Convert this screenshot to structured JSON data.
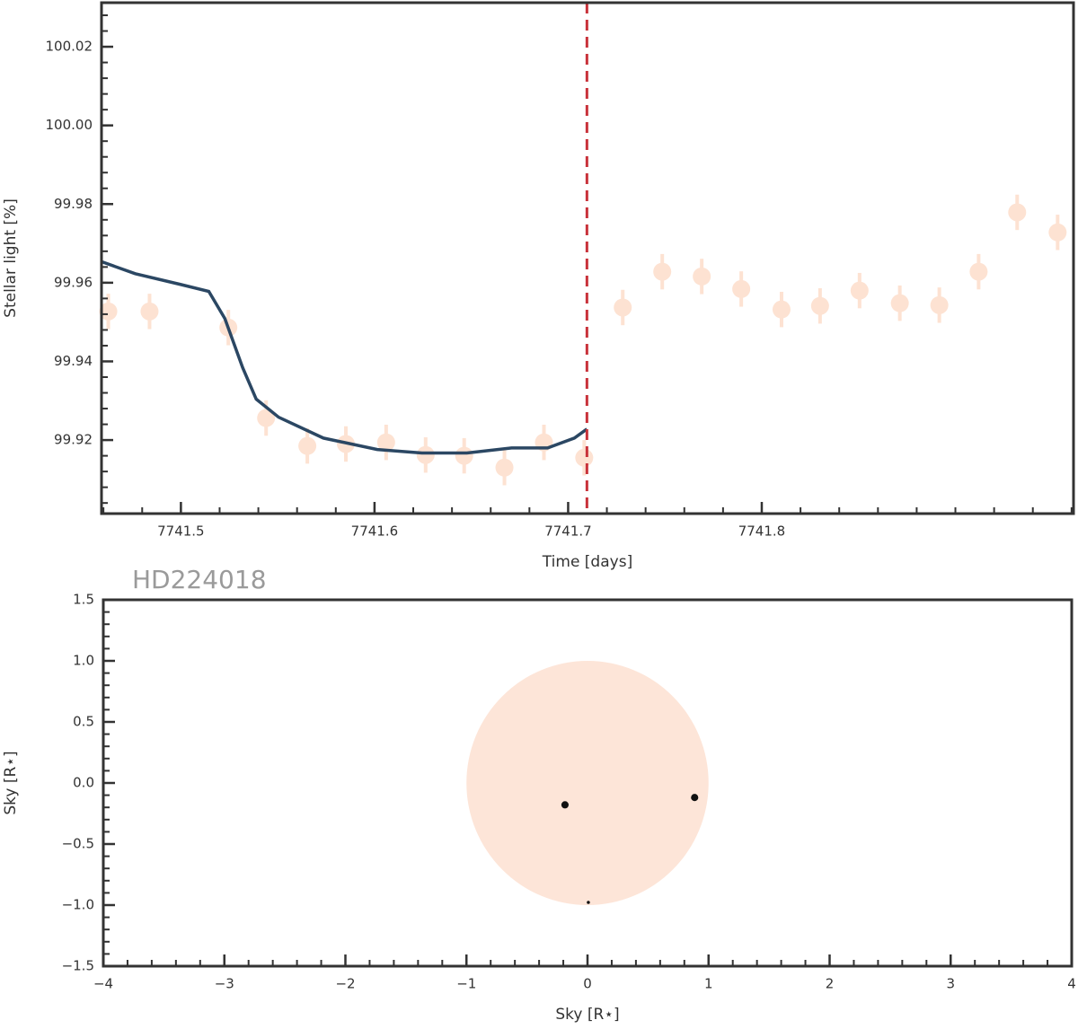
{
  "chart_data": [
    {
      "type": "lightcurve",
      "xlabel": "Time [days]",
      "ylabel": "Stellar light [%]",
      "xlim": [
        7741.459,
        7741.961
      ],
      "ylim": [
        99.9013,
        100.0312
      ],
      "xticks": [
        7741.5,
        7741.6,
        7741.7,
        7741.8
      ],
      "yticks": [
        99.92,
        99.94,
        99.96,
        99.98,
        {
          "value": 100,
          "label": "100.00"
        },
        100.02
      ],
      "points": {
        "color": "#fde2d2",
        "x": [
          7741.4625,
          7741.4838,
          7741.5245,
          7741.544,
          7741.5653,
          7741.5852,
          7741.606,
          7741.6264,
          7741.6463,
          7741.6671,
          7741.6875,
          7741.7083,
          7741.7282,
          7741.7486,
          7741.769,
          7741.7894,
          7741.8102,
          7741.8301,
          7741.8505,
          7741.8713,
          7741.8917,
          7741.912,
          7741.9319,
          7741.9528
        ],
        "values": [
          99.9527,
          99.9527,
          99.9486,
          99.9256,
          99.9185,
          99.919,
          99.9194,
          99.9162,
          99.916,
          99.913,
          99.9194,
          99.9155,
          99.9537,
          99.9628,
          99.9616,
          99.9584,
          99.9532,
          99.9541,
          99.958,
          99.9548,
          99.9543,
          99.9628,
          99.9779,
          99.9728
        ],
        "errors": [
          0.0045,
          0.0045,
          0.0045,
          0.0045,
          0.0045,
          0.0045,
          0.0045,
          0.0045,
          0.0045,
          0.0045,
          0.0045,
          0.0045,
          0.0045,
          0.0045,
          0.0045,
          0.0045,
          0.0045,
          0.0045,
          0.0045,
          0.0045,
          0.0045,
          0.0045,
          0.0045,
          0.0045
        ]
      },
      "model": {
        "color": "#2b4763",
        "x": [
          7741.4593,
          7741.4764,
          7741.4995,
          7741.5144,
          7741.5227,
          7741.5319,
          7741.5389,
          7741.5505,
          7741.5736,
          7741.6014,
          7741.6245,
          7741.6477,
          7741.6708,
          7741.6894,
          7741.7032,
          7741.7097
        ],
        "values": [
          99.9653,
          99.9623,
          99.9596,
          99.9578,
          99.9509,
          99.9384,
          99.9304,
          99.9258,
          99.9205,
          99.9176,
          99.9167,
          99.9167,
          99.918,
          99.918,
          99.9205,
          99.9228
        ]
      },
      "vline": {
        "x": 7741.7097,
        "color": "#c8323a"
      }
    },
    {
      "type": "sky",
      "title": "HD224018",
      "xlabel": "Sky [R⋆]",
      "ylabel": "Sky [R⋆]",
      "xlim": [
        -4,
        4
      ],
      "ylim": [
        -1.5,
        1.5
      ],
      "xticks": [
        {
          "value": -4,
          "label": "−4"
        },
        {
          "value": -3,
          "label": "−3"
        },
        {
          "value": -2,
          "label": "−2"
        },
        {
          "value": -1,
          "label": "−1"
        },
        0,
        1,
        2,
        3,
        4
      ],
      "yticks": [
        {
          "value": -1.5,
          "label": "−1.5"
        },
        {
          "value": -1,
          "label": "−1.0"
        },
        {
          "value": -0.5,
          "label": "−0.5"
        },
        {
          "value": 0,
          "label": "0.0"
        },
        0.5,
        {
          "value": 1,
          "label": "1.0"
        },
        1.5
      ],
      "star": {
        "x": 0,
        "y": 0,
        "radius": 1,
        "color": "#fde5d8"
      },
      "planets": {
        "color": "#111111",
        "x": [
          -0.186,
          0.885,
          0.007
        ],
        "y": [
          -0.179,
          -0.119,
          -0.978
        ],
        "radius": [
          0.03,
          0.03,
          0.013
        ]
      }
    }
  ]
}
